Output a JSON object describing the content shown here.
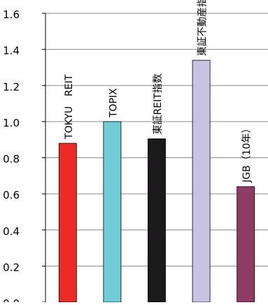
{
  "chart_data": {
    "type": "bar",
    "categories": [
      "TOKYU　REIT",
      "TOPIX",
      "東証REIT指数",
      "東証不動産指数",
      "JGB（10年）"
    ],
    "values": [
      0.88,
      1.0,
      0.905,
      1.34,
      0.64
    ],
    "colors": [
      "#ee2a24",
      "#6fcdd6",
      "#1c1a1c",
      "#c9c3e2",
      "#8e3b66"
    ],
    "ylim": [
      0.0,
      1.6
    ],
    "yticks": [
      "0.0",
      "0.2",
      "0.4",
      "0.6",
      "0.8",
      "1.0",
      "1.2",
      "1.4",
      "1.6"
    ],
    "grid": true,
    "title": "",
    "xlabel": "",
    "ylabel": ""
  }
}
